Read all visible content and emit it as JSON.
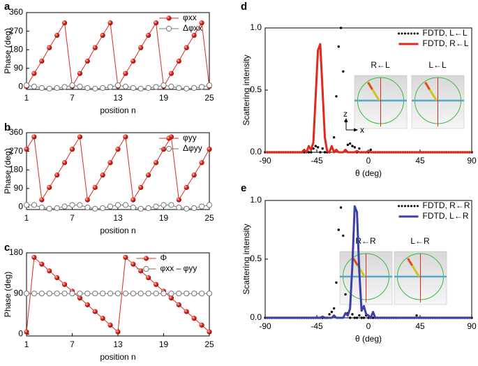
{
  "chart_data": [
    {
      "type": "line",
      "panel_label": "a",
      "x_label": "position n",
      "y_label": "Phase (deg)",
      "x": [
        1,
        2,
        3,
        4,
        5,
        6,
        7,
        8,
        9,
        10,
        11,
        12,
        13,
        14,
        15,
        16,
        17,
        18,
        19,
        20,
        21,
        22,
        23,
        24,
        25
      ],
      "xlim": [
        1,
        25
      ],
      "xticks": [
        1,
        7,
        13,
        19,
        25
      ],
      "ylim": [
        -12,
        360
      ],
      "yticks": [
        0,
        90,
        180,
        270,
        360
      ],
      "legend": "upper right",
      "series": [
        {
          "name": "φxx",
          "color": "#e0281c",
          "marker": "filled",
          "values": [
            2,
            65,
            125,
            190,
            250,
            310,
            2,
            65,
            125,
            190,
            250,
            310,
            2,
            65,
            125,
            190,
            250,
            310,
            2,
            65,
            125,
            190,
            250,
            310,
            2
          ]
        },
        {
          "name": "Δφxx",
          "color": "#777777",
          "marker": "open",
          "values": [
            8,
            2,
            -5,
            -8,
            -5,
            0,
            8,
            2,
            -5,
            -8,
            -5,
            0,
            8,
            2,
            -5,
            -8,
            -5,
            0,
            8,
            2,
            -5,
            -8,
            -5,
            0,
            8
          ]
        }
      ]
    },
    {
      "type": "line",
      "panel_label": "b",
      "x_label": "position n",
      "y_label": "Phase (deg)",
      "x": [
        1,
        2,
        3,
        4,
        5,
        6,
        7,
        8,
        9,
        10,
        11,
        12,
        13,
        14,
        15,
        16,
        17,
        18,
        19,
        20,
        21,
        22,
        23,
        24,
        25
      ],
      "xlim": [
        1,
        25
      ],
      "xticks": [
        1,
        7,
        13,
        19,
        25
      ],
      "ylim": [
        -12,
        360
      ],
      "yticks": [
        0,
        90,
        180,
        270,
        360
      ],
      "legend": "upper right",
      "series": [
        {
          "name": "φyy",
          "color": "#e0281c",
          "marker": "filled",
          "values": [
            280,
            340,
            35,
            95,
            155,
            215,
            280,
            340,
            35,
            95,
            155,
            215,
            280,
            340,
            35,
            95,
            155,
            215,
            280,
            340,
            35,
            95,
            155,
            215,
            280
          ]
        },
        {
          "name": "Δφyy",
          "color": "#777777",
          "marker": "open",
          "values": [
            10,
            10,
            -2,
            -8,
            -5,
            3,
            10,
            10,
            -2,
            -8,
            -5,
            3,
            10,
            10,
            -2,
            -8,
            -5,
            3,
            10,
            10,
            -2,
            -8,
            -5,
            3,
            10
          ]
        }
      ]
    },
    {
      "type": "line",
      "panel_label": "c",
      "x_label": "position n",
      "y_label": "Phase (deg)",
      "x": [
        1,
        2,
        3,
        4,
        5,
        6,
        7,
        8,
        9,
        10,
        11,
        12,
        13,
        14,
        15,
        16,
        17,
        18,
        19,
        20,
        21,
        22,
        23,
        24,
        25
      ],
      "xlim": [
        1,
        25
      ],
      "xticks": [
        1,
        7,
        13,
        19,
        25
      ],
      "ylim": [
        -4,
        180
      ],
      "yticks": [
        0,
        90,
        180
      ],
      "legend": "upper right",
      "series": [
        {
          "name": "Φ",
          "color": "#e0281c",
          "marker": "filled",
          "values": [
            5,
            170,
            155,
            140,
            125,
            110,
            95,
            80,
            65,
            50,
            35,
            20,
            5,
            170,
            155,
            140,
            125,
            110,
            95,
            80,
            65,
            50,
            35,
            20,
            5
          ]
        },
        {
          "name": "φxx – φyy",
          "color": "#777777",
          "marker": "open",
          "values": [
            90,
            90,
            90,
            90,
            90,
            90,
            90,
            90,
            90,
            90,
            90,
            90,
            90,
            90,
            90,
            90,
            90,
            90,
            90,
            90,
            90,
            90,
            90,
            90,
            90
          ]
        }
      ]
    },
    {
      "type": "line",
      "panel_label": "d",
      "x_label": "θ (deg)",
      "y_label": "Scattering intensity",
      "x": [
        -90,
        -88,
        -86,
        -84,
        -82,
        -80,
        -78,
        -76,
        -74,
        -72,
        -70,
        -68,
        -66,
        -64,
        -62,
        -60,
        -58,
        -56,
        -54,
        -52,
        -50,
        -48,
        -46,
        -44,
        -42,
        -40,
        -38,
        -36,
        -34,
        -32,
        -30,
        -28,
        -26,
        -24,
        -22,
        -20,
        -18,
        -16,
        -14,
        -12,
        -10,
        -8,
        -6,
        -4,
        -2,
        0,
        2,
        4,
        6,
        8,
        10,
        12,
        14,
        16,
        18,
        20,
        22,
        24,
        26,
        28,
        30,
        32,
        34,
        36,
        38,
        40,
        42,
        44,
        46,
        48,
        50,
        52,
        54,
        56,
        58,
        60,
        62,
        64,
        66,
        68,
        70,
        72,
        74,
        76,
        78,
        80,
        82,
        84,
        86,
        88,
        90
      ],
      "xlim": [
        -90,
        90
      ],
      "xticks": [
        -90,
        -45,
        0,
        45,
        90
      ],
      "ylim": [
        0,
        1
      ],
      "yticks": [
        {
          "value": 0,
          "label": "0.0"
        },
        {
          "value": 0.5,
          "label": "0.5"
        },
        {
          "value": 1,
          "label": "1.0"
        }
      ],
      "legend": "upper right",
      "annotations": [
        "R←L",
        "L←L",
        "z",
        "x"
      ],
      "series": [
        {
          "name": "FDTD, L←L",
          "color": "#000000",
          "style": "dotted",
          "values": [
            0,
            0,
            0,
            0,
            0,
            0,
            0,
            0,
            0,
            0,
            0,
            0,
            0,
            0,
            0,
            0,
            0,
            0,
            0,
            0,
            0,
            0.03,
            0.05,
            0.04,
            0,
            0.03,
            0,
            0,
            0,
            0.04,
            0.12,
            0.45,
            0.85,
            1.0,
            0.65,
            0.25,
            0.06,
            0.07,
            0.05,
            0.04,
            0,
            0.03,
            0,
            0,
            0,
            0,
            0.02,
            0,
            0,
            0,
            0,
            0,
            0,
            0,
            0,
            0,
            0,
            0,
            0,
            0,
            0,
            0,
            0,
            0,
            0,
            0,
            0,
            0,
            0,
            0,
            0,
            0,
            0,
            0,
            0,
            0,
            0,
            0,
            0,
            0,
            0,
            0,
            0,
            0,
            0,
            0,
            0,
            0,
            0,
            0,
            0
          ]
        },
        {
          "name": "FDTD, R←L",
          "color": "#e0281c",
          "style": "solid",
          "values": [
            0,
            0,
            0,
            0,
            0,
            0,
            0,
            0,
            0,
            0,
            0,
            0,
            0,
            0,
            0,
            0,
            0,
            0.02,
            0,
            0.05,
            0.02,
            0.08,
            0.45,
            0.82,
            0.87,
            0.5,
            0.12,
            0.01,
            0,
            0.05,
            0,
            0.02,
            0,
            0,
            0,
            0.02,
            0,
            0,
            0,
            0,
            0.01,
            0,
            0,
            0,
            0,
            0.01,
            0,
            0,
            0,
            0,
            0,
            0,
            0,
            0,
            0,
            0,
            0,
            0,
            0,
            0,
            0,
            0,
            0,
            0,
            0,
            0,
            0,
            0,
            0,
            0,
            0,
            0,
            0,
            0,
            0,
            0,
            0,
            0,
            0,
            0,
            0,
            0,
            0,
            0,
            0,
            0,
            0,
            0,
            0,
            0,
            0
          ]
        }
      ]
    },
    {
      "type": "line",
      "panel_label": "e",
      "x_label": "θ (deg)",
      "y_label": "Scattering intensity",
      "x": [
        -90,
        -88,
        -86,
        -84,
        -82,
        -80,
        -78,
        -76,
        -74,
        -72,
        -70,
        -68,
        -66,
        -64,
        -62,
        -60,
        -58,
        -56,
        -54,
        -52,
        -50,
        -48,
        -46,
        -44,
        -42,
        -40,
        -38,
        -36,
        -34,
        -32,
        -30,
        -28,
        -26,
        -24,
        -22,
        -20,
        -18,
        -16,
        -14,
        -12,
        -10,
        -8,
        -6,
        -4,
        -2,
        0,
        2,
        4,
        6,
        8,
        10,
        12,
        14,
        16,
        18,
        20,
        22,
        24,
        26,
        28,
        30,
        32,
        34,
        36,
        38,
        40,
        42,
        44,
        46,
        48,
        50,
        52,
        54,
        56,
        58,
        60,
        62,
        64,
        66,
        68,
        70,
        72,
        74,
        76,
        78,
        80,
        82,
        84,
        86,
        88,
        90
      ],
      "xlim": [
        -90,
        90
      ],
      "xticks": [
        -90,
        -45,
        0,
        45,
        90
      ],
      "ylim": [
        0,
        1
      ],
      "yticks": [
        {
          "value": 0,
          "label": "0.0"
        },
        {
          "value": 0.5,
          "label": "0.5"
        },
        {
          "value": 1,
          "label": "1.0"
        }
      ],
      "legend": "upper right",
      "annotations": [
        "R←R",
        "L←R"
      ],
      "series": [
        {
          "name": "FDTD, R←R",
          "color": "#000000",
          "style": "dotted",
          "values": [
            0,
            0,
            0,
            0,
            0,
            0,
            0,
            0,
            0,
            0,
            0,
            0,
            0,
            0,
            0,
            0,
            0,
            0,
            0,
            0,
            0,
            0,
            0,
            0,
            0,
            0,
            0,
            0,
            0.03,
            0.05,
            0.08,
            0.3,
            0.75,
            0.94,
            0.7,
            0.2,
            0.04,
            0,
            0.03,
            0,
            0,
            0.02,
            0,
            0,
            0.02,
            0,
            0,
            0,
            0,
            0,
            0,
            0,
            0,
            0,
            0,
            0,
            0,
            0,
            0,
            0,
            0,
            0,
            0,
            0,
            0,
            0,
            0.02,
            0,
            0,
            0,
            0,
            0,
            0,
            0,
            0,
            0,
            0,
            0,
            0,
            0,
            0,
            0,
            0,
            0,
            0,
            0,
            0,
            0,
            0,
            0,
            0
          ]
        },
        {
          "name": "FDTD, L←R",
          "color": "#3b3fa8",
          "style": "solid",
          "values": [
            0,
            0,
            0,
            0,
            0,
            0,
            0,
            0,
            0,
            0,
            0,
            0,
            0,
            0,
            0,
            0,
            0,
            0,
            0,
            0,
            0,
            0,
            0,
            0,
            0,
            0.01,
            0,
            0,
            0,
            0,
            0.02,
            0,
            0,
            0,
            0,
            0.04,
            0.02,
            0.08,
            0.45,
            0.95,
            0.9,
            0.4,
            0.06,
            0.1,
            0.03,
            0.02,
            0,
            0.05,
            0,
            0,
            0,
            0,
            0,
            0,
            0,
            0,
            0,
            0,
            0,
            0,
            0,
            0,
            0,
            0,
            0,
            0,
            0,
            0,
            0,
            0,
            0,
            0,
            0,
            0,
            0,
            0,
            0,
            0,
            0,
            0,
            0,
            0,
            0,
            0,
            0,
            0,
            0,
            0,
            0,
            0,
            0
          ]
        }
      ]
    }
  ]
}
